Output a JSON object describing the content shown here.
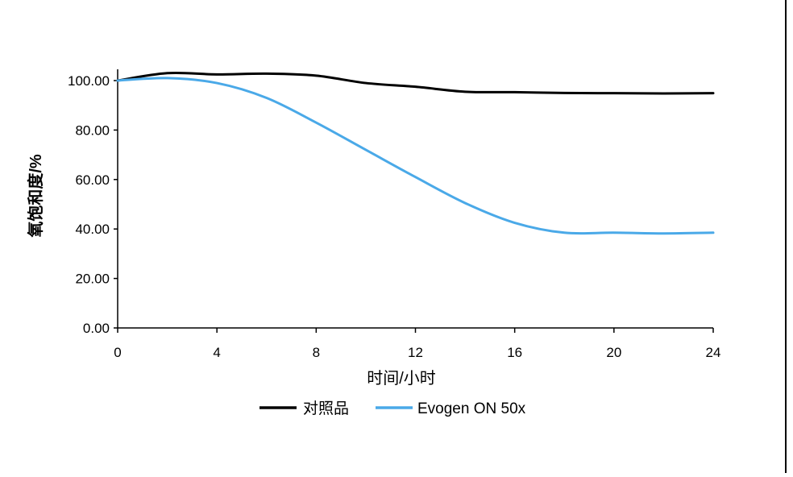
{
  "chart_data": {
    "type": "line",
    "title": "",
    "xlabel": "时间/小时",
    "ylabel": "氧饱和度/%",
    "xlim": [
      0,
      24
    ],
    "ylim": [
      0,
      100
    ],
    "x_ticks": [
      "0",
      "4",
      "8",
      "12",
      "16",
      "20",
      "24"
    ],
    "y_ticks": [
      "0.00",
      "20.00",
      "40.00",
      "60.00",
      "80.00",
      "100.00"
    ],
    "legend_position": "bottom",
    "grid": false,
    "series": [
      {
        "name": "对照品",
        "color": "#000000",
        "x": [
          0,
          2,
          4,
          6,
          8,
          10,
          12,
          14,
          16,
          18,
          20,
          22,
          24
        ],
        "y": [
          100,
          103,
          102.5,
          102.8,
          102,
          99,
          97.5,
          95.5,
          95.3,
          95,
          94.9,
          94.8,
          94.9
        ]
      },
      {
        "name": "Evogen ON 50x",
        "color": "#4aa9e8",
        "x": [
          0,
          2,
          4,
          6,
          8,
          10,
          12,
          14,
          16,
          18,
          20,
          22,
          24
        ],
        "y": [
          100,
          101,
          99,
          93,
          83,
          72,
          61,
          50.5,
          42.5,
          38.5,
          38.5,
          38.2,
          38.5
        ]
      }
    ]
  }
}
